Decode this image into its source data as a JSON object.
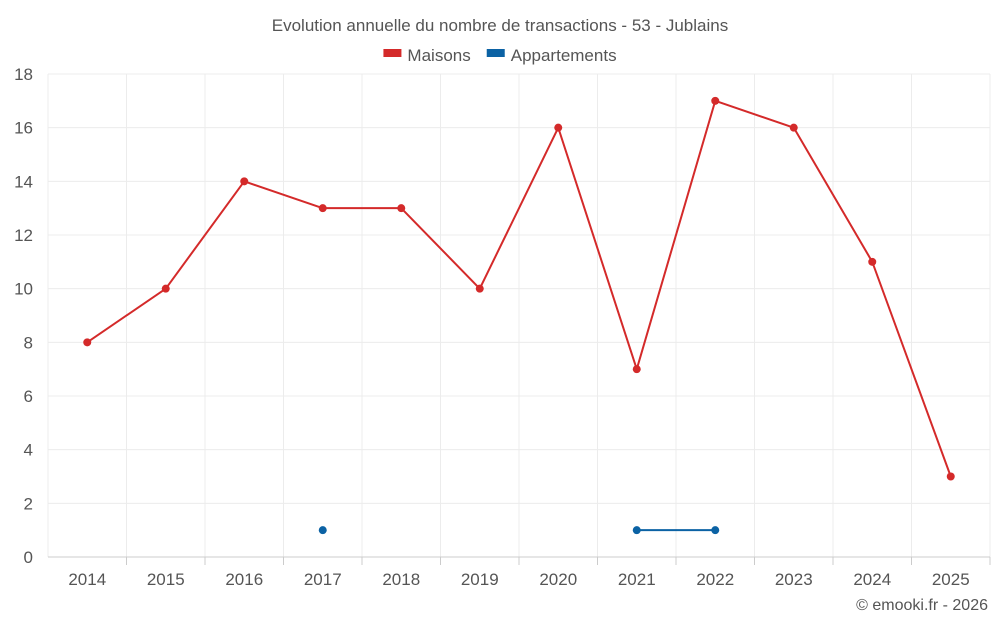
{
  "chart_data": {
    "type": "line",
    "title": "Evolution annuelle du nombre de transactions - 53 - Jublains",
    "categories": [
      "2014",
      "2015",
      "2016",
      "2017",
      "2018",
      "2019",
      "2020",
      "2021",
      "2022",
      "2023",
      "2024",
      "2025"
    ],
    "ylim": [
      0,
      18
    ],
    "yticks": [
      0,
      2,
      4,
      6,
      8,
      10,
      12,
      14,
      16,
      18
    ],
    "grid": true,
    "legend_position": "top-center",
    "series": [
      {
        "name": "Maisons",
        "color": "#d42a2a",
        "values": [
          8,
          10,
          14,
          13,
          13,
          10,
          16,
          7,
          17,
          16,
          11,
          3
        ]
      },
      {
        "name": "Appartements",
        "color": "#0b62a4",
        "values": [
          null,
          null,
          null,
          1,
          null,
          null,
          null,
          1,
          1,
          null,
          null,
          null
        ]
      }
    ]
  },
  "credit": "© emooki.fr - 2026"
}
